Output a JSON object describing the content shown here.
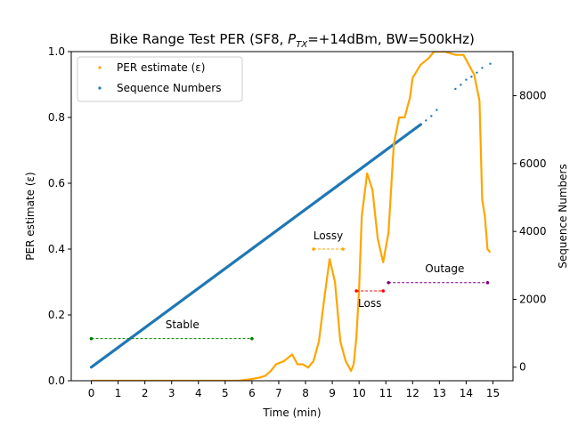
{
  "chart_data": {
    "type": "scatter",
    "title_parts": [
      "Bike Range Test PER (SF8, ",
      "P",
      "TX",
      "=+14dBm, BW=500kHz)"
    ],
    "xlabel": "Time (min)",
    "ylabel_left": "PER estimate (ε)",
    "ylabel_right": "Sequence Numbers",
    "xlim": [
      -0.75,
      15.75
    ],
    "ylim_left": [
      0,
      1
    ],
    "ylim_right": [
      -400,
      9300
    ],
    "x_ticks": [
      "0",
      "1",
      "2",
      "3",
      "4",
      "5",
      "6",
      "7",
      "8",
      "9",
      "10",
      "11",
      "12",
      "13",
      "14",
      "15"
    ],
    "y_ticks_left": [
      "0.0",
      "0.2",
      "0.4",
      "0.6",
      "0.8",
      "1.0"
    ],
    "y_ticks_right": [
      "0",
      "2000",
      "4000",
      "6000",
      "8000"
    ],
    "grid": false,
    "legend_placement": "top-left",
    "colors": {
      "per": "#ffa500",
      "seq": "#1f77b4"
    },
    "series": [
      {
        "name": "PER estimate (ε)",
        "color": "#ffa500",
        "points": [
          [
            0,
            0
          ],
          [
            2,
            0
          ],
          [
            4,
            0
          ],
          [
            5.5,
            0
          ],
          [
            6,
            0.005
          ],
          [
            6.3,
            0.01
          ],
          [
            6.5,
            0.015
          ],
          [
            6.7,
            0.03
          ],
          [
            6.9,
            0.05
          ],
          [
            7.2,
            0.06
          ],
          [
            7.5,
            0.08
          ],
          [
            7.7,
            0.05
          ],
          [
            7.9,
            0.05
          ],
          [
            8.1,
            0.04
          ],
          [
            8.3,
            0.06
          ],
          [
            8.5,
            0.12
          ],
          [
            8.7,
            0.25
          ],
          [
            8.9,
            0.37
          ],
          [
            9.1,
            0.3
          ],
          [
            9.3,
            0.12
          ],
          [
            9.5,
            0.06
          ],
          [
            9.7,
            0.03
          ],
          [
            9.8,
            0.05
          ],
          [
            9.9,
            0.13
          ],
          [
            10.0,
            0.28
          ],
          [
            10.1,
            0.5
          ],
          [
            10.3,
            0.63
          ],
          [
            10.5,
            0.58
          ],
          [
            10.7,
            0.43
          ],
          [
            10.9,
            0.36
          ],
          [
            11.1,
            0.45
          ],
          [
            11.3,
            0.72
          ],
          [
            11.5,
            0.8
          ],
          [
            11.7,
            0.8
          ],
          [
            11.9,
            0.86
          ],
          [
            12.0,
            0.92
          ],
          [
            12.3,
            0.96
          ],
          [
            12.6,
            0.98
          ],
          [
            12.8,
            1.0
          ],
          [
            13.2,
            1.0
          ],
          [
            13.6,
            0.99
          ],
          [
            13.9,
            0.99
          ],
          [
            14.1,
            0.96
          ],
          [
            14.3,
            0.93
          ],
          [
            14.5,
            0.85
          ],
          [
            14.6,
            0.55
          ],
          [
            14.7,
            0.5
          ],
          [
            14.8,
            0.4
          ],
          [
            14.9,
            0.39
          ]
        ]
      },
      {
        "name": "Sequence Numbers",
        "color": "#1f77b4",
        "segments": [
          [
            [
              0,
              0
            ],
            [
              12.3,
              7150
            ]
          ]
        ],
        "scatter_points": [
          [
            12.5,
            7270
          ],
          [
            12.7,
            7400
          ],
          [
            12.9,
            7580
          ],
          [
            13.6,
            8200
          ],
          [
            13.8,
            8320
          ],
          [
            14.0,
            8470
          ],
          [
            14.2,
            8560
          ],
          [
            14.4,
            8680
          ],
          [
            14.6,
            8820
          ],
          [
            14.9,
            8940
          ]
        ]
      }
    ],
    "annotations": [
      {
        "label": "Stable",
        "x_start": 0,
        "x_end": 6,
        "y": 0.128,
        "color": "#008000",
        "label_x": 3.4,
        "label_y": 0.16
      },
      {
        "label": "Lossy",
        "x_start": 8.3,
        "x_end": 9.4,
        "y": 0.4,
        "color": "#ffa500",
        "label_x": 8.85,
        "label_y": 0.43
      },
      {
        "label": "Loss",
        "x_start": 9.9,
        "x_end": 10.9,
        "y": 0.273,
        "color": "#ff0000",
        "label_x": 10.4,
        "label_y": 0.225
      },
      {
        "label": "Outage",
        "x_start": 11.1,
        "x_end": 14.8,
        "y": 0.298,
        "color": "#800080",
        "label_x": 13.2,
        "label_y": 0.33
      }
    ]
  }
}
